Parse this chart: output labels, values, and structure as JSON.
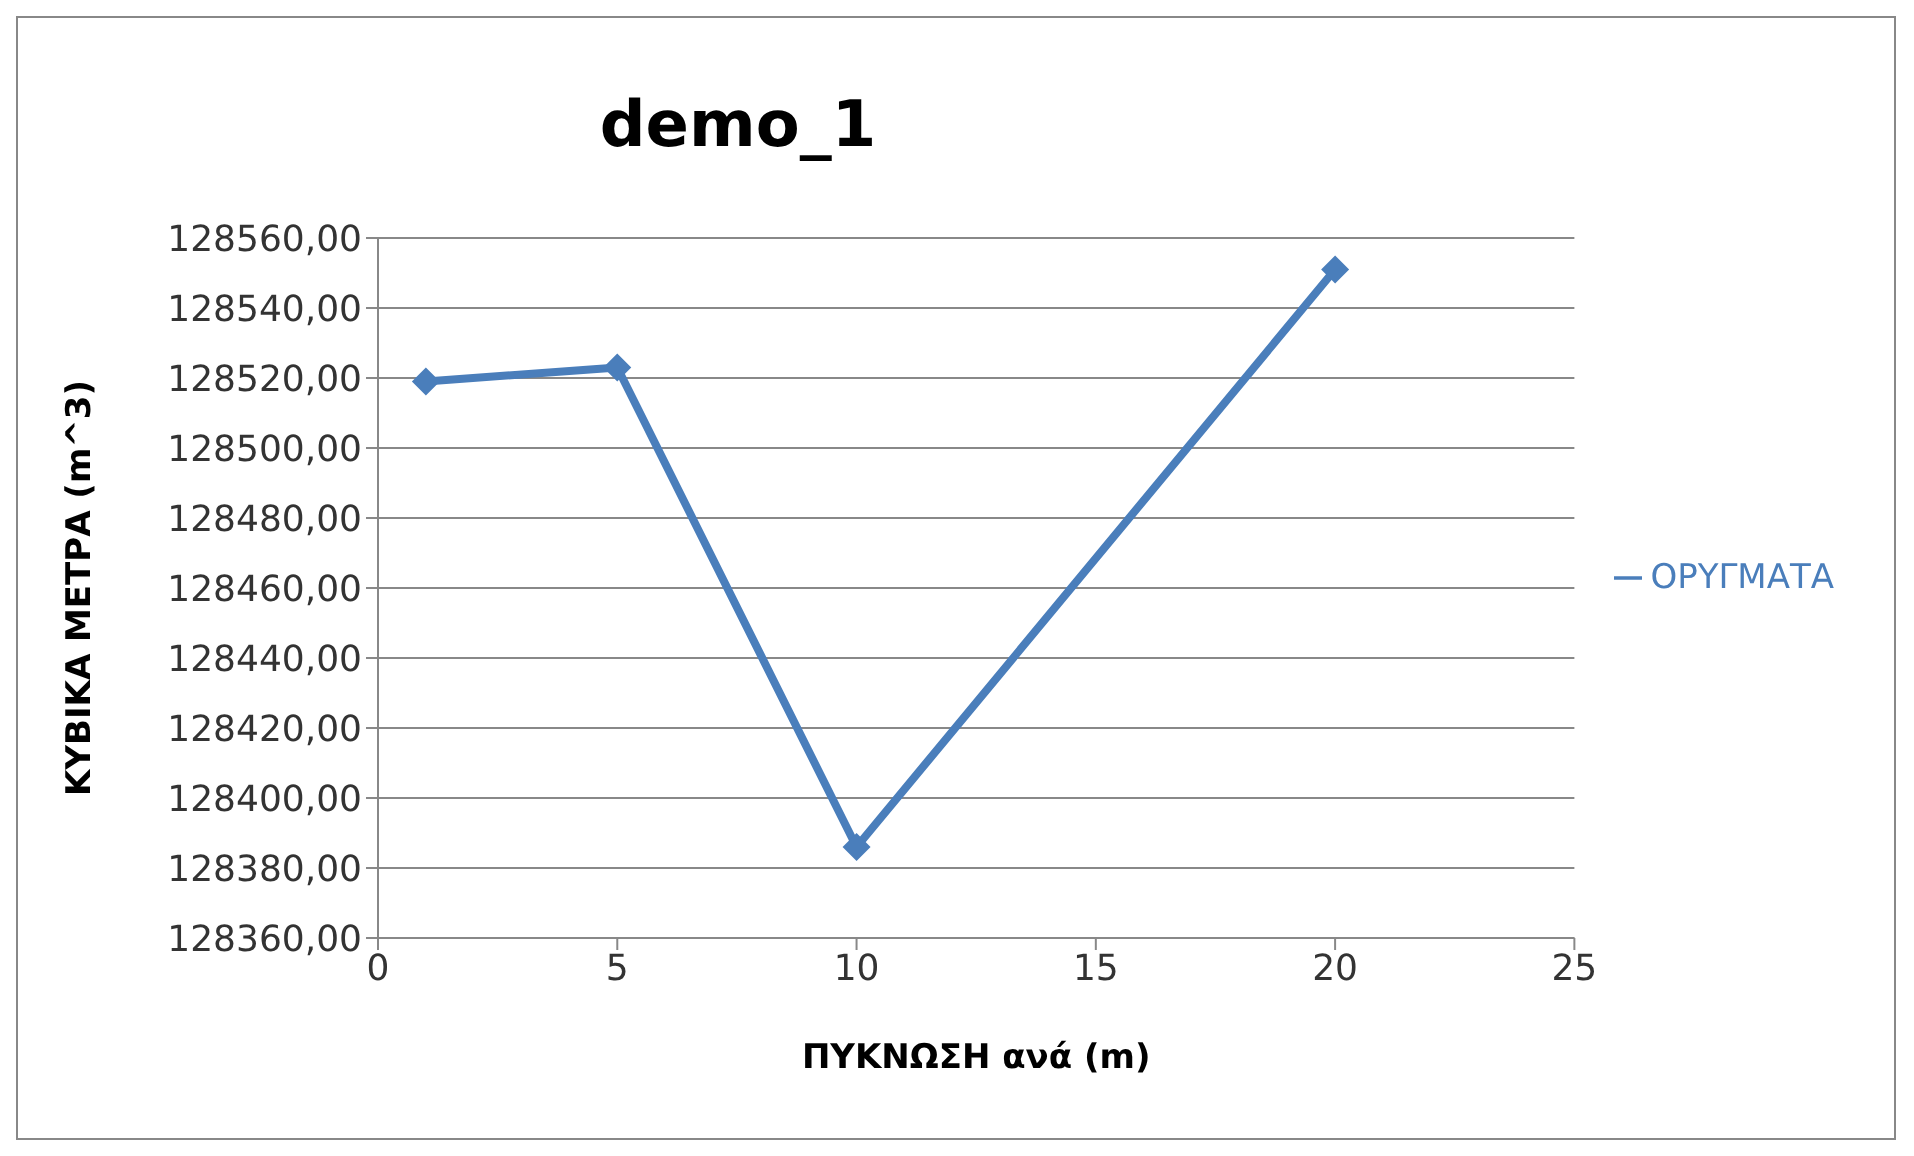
{
  "chart_data": {
    "type": "line",
    "title": "demo_1",
    "xlabel": "ΠΥΚΝΩΣΗ ανά (m)",
    "ylabel": "ΚΥΒΙΚΑ ΜΕΤΡΑ (m^3)",
    "x": [
      1,
      5,
      10,
      20
    ],
    "series": [
      {
        "name": "ΟΡΥΓΜΑΤΑ",
        "color": "#4a7ebb",
        "values": [
          128519,
          128523,
          128386,
          128551
        ]
      }
    ],
    "xlim": [
      0,
      25
    ],
    "xticks": [
      0,
      5,
      10,
      15,
      20,
      25
    ],
    "ylim": [
      128360,
      128560
    ],
    "yticks": [
      {
        "value": 128360,
        "label": "128360,00"
      },
      {
        "value": 128380,
        "label": "128380,00"
      },
      {
        "value": 128400,
        "label": "128400,00"
      },
      {
        "value": 128420,
        "label": "128420,00"
      },
      {
        "value": 128440,
        "label": "128440,00"
      },
      {
        "value": 128460,
        "label": "128460,00"
      },
      {
        "value": 128480,
        "label": "128480,00"
      },
      {
        "value": 128500,
        "label": "128500,00"
      },
      {
        "value": 128520,
        "label": "128520,00"
      },
      {
        "value": 128540,
        "label": "128540,00"
      },
      {
        "value": 128560,
        "label": "128560,00"
      }
    ],
    "grid": "y",
    "legend": "right",
    "marker": "diamond",
    "line_style": "solid"
  }
}
